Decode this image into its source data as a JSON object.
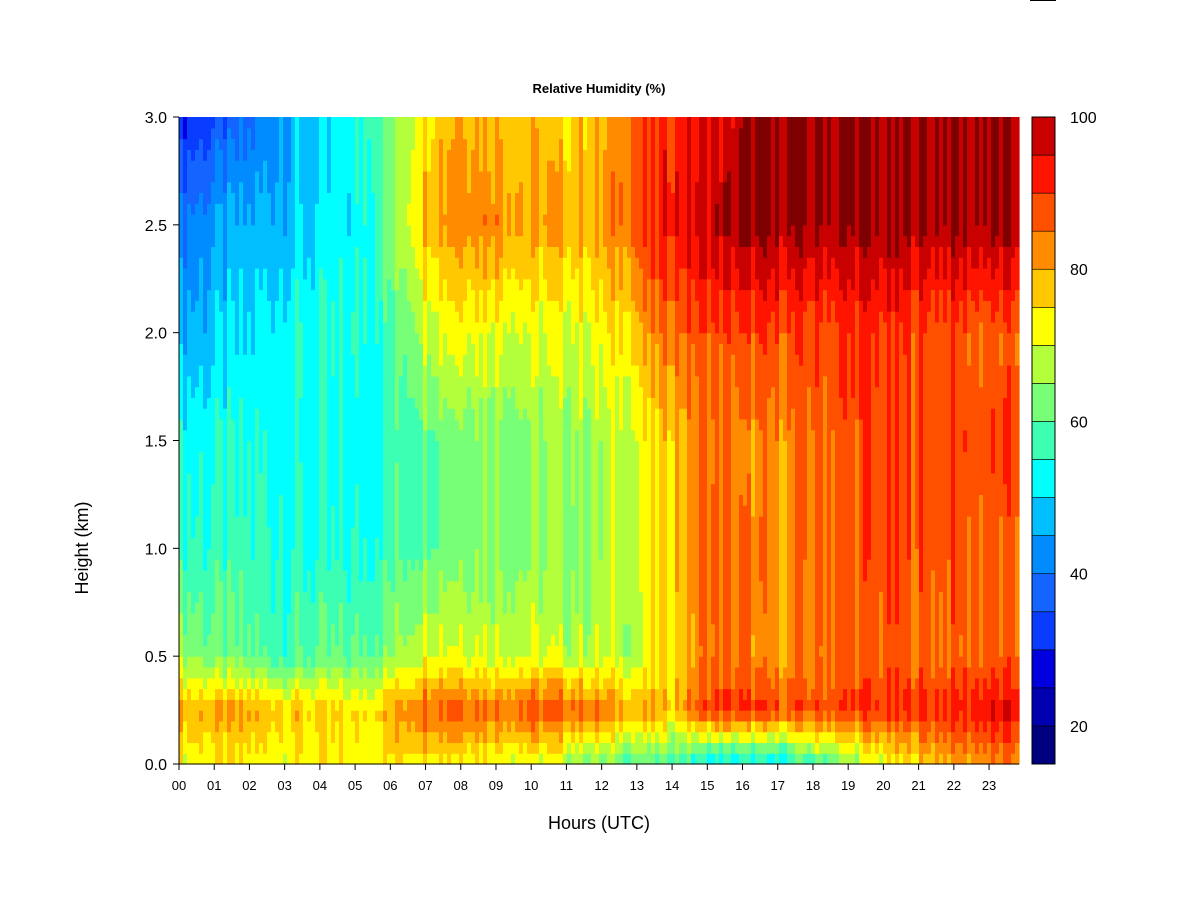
{
  "chart_data": {
    "type": "heatmap",
    "title": "Relative Humidity (%)",
    "xlabel": "Hours (UTC)",
    "ylabel": "Height (km)",
    "x_ticks": [
      "00",
      "01",
      "02",
      "03",
      "04",
      "05",
      "06",
      "07",
      "08",
      "09",
      "10",
      "11",
      "12",
      "13",
      "14",
      "15",
      "16",
      "17",
      "18",
      "19",
      "20",
      "21",
      "22",
      "23"
    ],
    "xlim": [
      0,
      23.85
    ],
    "y_ticks": [
      "0.0",
      "0.5",
      "1.0",
      "1.5",
      "2.0",
      "2.5",
      "3.0"
    ],
    "ylim": [
      0,
      3.0
    ],
    "colorbar": {
      "min": 15,
      "max": 100,
      "tick_values": [
        20,
        40,
        60,
        80,
        100
      ],
      "tick_labels": [
        "20",
        "40",
        "60",
        "80",
        "100"
      ],
      "levels": [
        15,
        20,
        25,
        30,
        35,
        40,
        45,
        50,
        55,
        60,
        65,
        70,
        75,
        80,
        85,
        90,
        95,
        100
      ],
      "colors": [
        "#00007F",
        "#0000B0",
        "#0000DF",
        "#0A3CFF",
        "#1464FF",
        "#008CFF",
        "#00BEFF",
        "#00FFFF",
        "#3CFFB4",
        "#78FF78",
        "#B4FF3C",
        "#FFFF00",
        "#FFC800",
        "#FF8C00",
        "#FF5000",
        "#FF1400",
        "#C80000",
        "#7F0000"
      ]
    },
    "heights_km": [
      0.0,
      0.25,
      0.5,
      1.0,
      1.5,
      2.0,
      2.5,
      3.0
    ],
    "hours": [
      0,
      1,
      2,
      3,
      4,
      5,
      6,
      7,
      8,
      9,
      10,
      11,
      12,
      13,
      14,
      15,
      16,
      17,
      18,
      19,
      20,
      21,
      22,
      23,
      23.85
    ],
    "values": [
      [
        72,
        72,
        72,
        72,
        72,
        72,
        74,
        76,
        74,
        72,
        70,
        66,
        62,
        60,
        58,
        50,
        50,
        50,
        58,
        64,
        70,
        76,
        80,
        82,
        82
      ],
      [
        80,
        80,
        80,
        78,
        76,
        74,
        80,
        88,
        88,
        86,
        88,
        88,
        84,
        80,
        78,
        90,
        90,
        88,
        88,
        90,
        90,
        90,
        92,
        94,
        94
      ],
      [
        66,
        62,
        60,
        58,
        60,
        60,
        64,
        72,
        72,
        70,
        70,
        68,
        68,
        68,
        76,
        84,
        84,
        80,
        84,
        86,
        86,
        86,
        86,
        86,
        86
      ],
      [
        56,
        56,
        56,
        56,
        54,
        54,
        58,
        62,
        64,
        64,
        64,
        64,
        66,
        70,
        78,
        86,
        84,
        82,
        86,
        88,
        88,
        88,
        88,
        86,
        86
      ],
      [
        54,
        54,
        54,
        54,
        52,
        52,
        56,
        62,
        64,
        64,
        64,
        66,
        66,
        70,
        78,
        84,
        82,
        82,
        86,
        88,
        88,
        88,
        88,
        88,
        88
      ],
      [
        46,
        48,
        50,
        54,
        54,
        54,
        58,
        70,
        74,
        72,
        70,
        70,
        72,
        78,
        86,
        88,
        88,
        88,
        88,
        90,
        90,
        88,
        88,
        86,
        86
      ],
      [
        40,
        44,
        46,
        48,
        50,
        52,
        62,
        80,
        84,
        84,
        80,
        80,
        80,
        88,
        94,
        98,
        100,
        100,
        100,
        100,
        100,
        100,
        100,
        100,
        100
      ],
      [
        30,
        34,
        38,
        46,
        48,
        54,
        64,
        76,
        82,
        80,
        78,
        76,
        78,
        88,
        92,
        94,
        98,
        100,
        100,
        100,
        100,
        100,
        100,
        100,
        100
      ]
    ]
  }
}
